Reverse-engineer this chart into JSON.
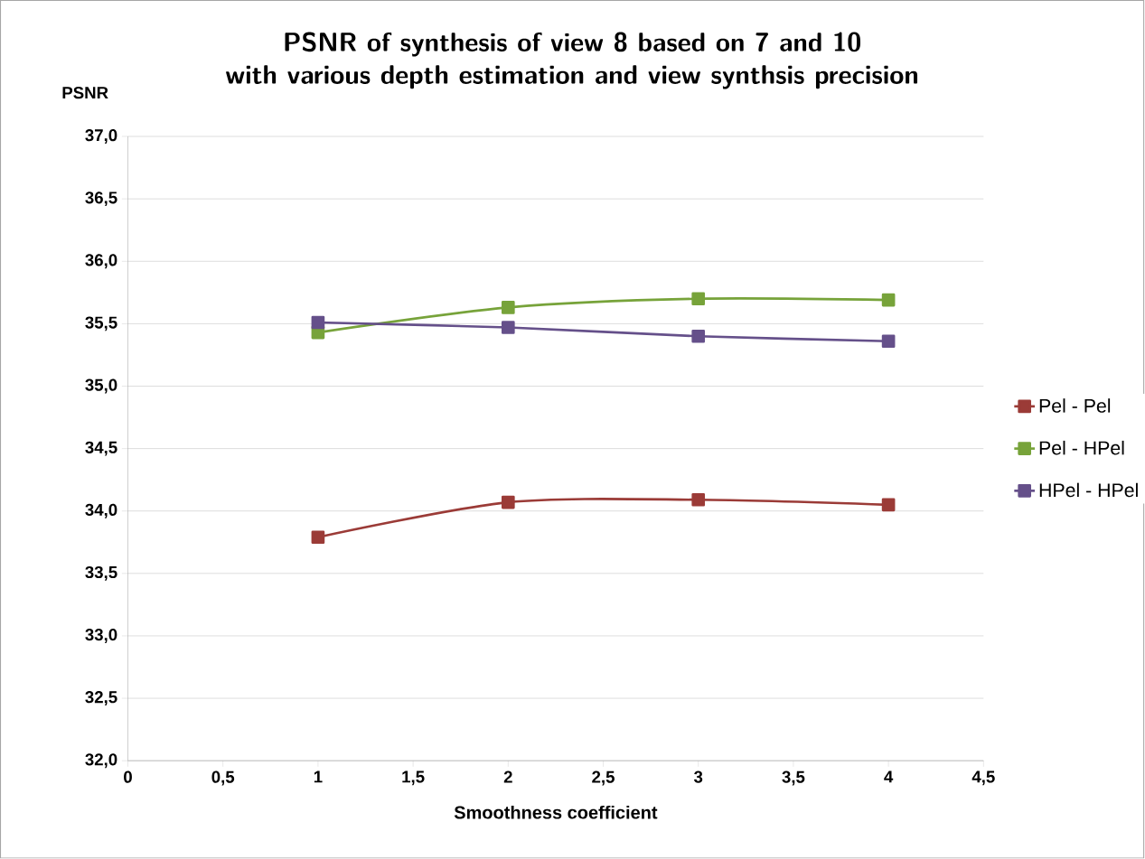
{
  "chart_data": {
    "type": "line",
    "title": "PSNR of synthesis of view 8 based on 7 and 10\nwith various depth estimation and view synthsis precision",
    "xlabel": "Smoothness coefficient",
    "ylabel": "PSNR",
    "x": [
      1,
      2,
      3,
      4
    ],
    "series": [
      {
        "name": "Pel - Pel",
        "color": "#9b3b37",
        "values": [
          33.79,
          34.07,
          34.09,
          34.05
        ]
      },
      {
        "name": "Pel - HPel",
        "color": "#77a33a",
        "values": [
          35.43,
          35.63,
          35.7,
          35.69
        ]
      },
      {
        "name": "HPel - HPel",
        "color": "#65508a",
        "values": [
          35.51,
          35.47,
          35.4,
          35.36
        ]
      }
    ],
    "xlim": [
      0,
      4.5
    ],
    "ylim": [
      32,
      37
    ],
    "xticks": [
      0,
      {
        "value": 0.5,
        "label": "0,5"
      },
      1,
      {
        "value": 1.5,
        "label": "1,5"
      },
      2,
      {
        "value": 2.5,
        "label": "2,5"
      },
      3,
      {
        "value": 3.5,
        "label": "3,5"
      },
      4,
      {
        "value": 4.5,
        "label": "4,5"
      }
    ],
    "yticks": [
      {
        "value": 32,
        "label": "32,0"
      },
      {
        "value": 32.5,
        "label": "32,5"
      },
      {
        "value": 33,
        "label": "33,0"
      },
      {
        "value": 33.5,
        "label": "33,5"
      },
      {
        "value": 34,
        "label": "34,0"
      },
      {
        "value": 34.5,
        "label": "34,5"
      },
      {
        "value": 35,
        "label": "35,0"
      },
      {
        "value": 35.5,
        "label": "35,5"
      },
      {
        "value": 36,
        "label": "36,0"
      },
      {
        "value": 36.5,
        "label": "36,5"
      },
      {
        "value": 37,
        "label": "37,0"
      }
    ],
    "grid": "y",
    "legend": "right",
    "marker": "square",
    "line_style": "solid"
  }
}
